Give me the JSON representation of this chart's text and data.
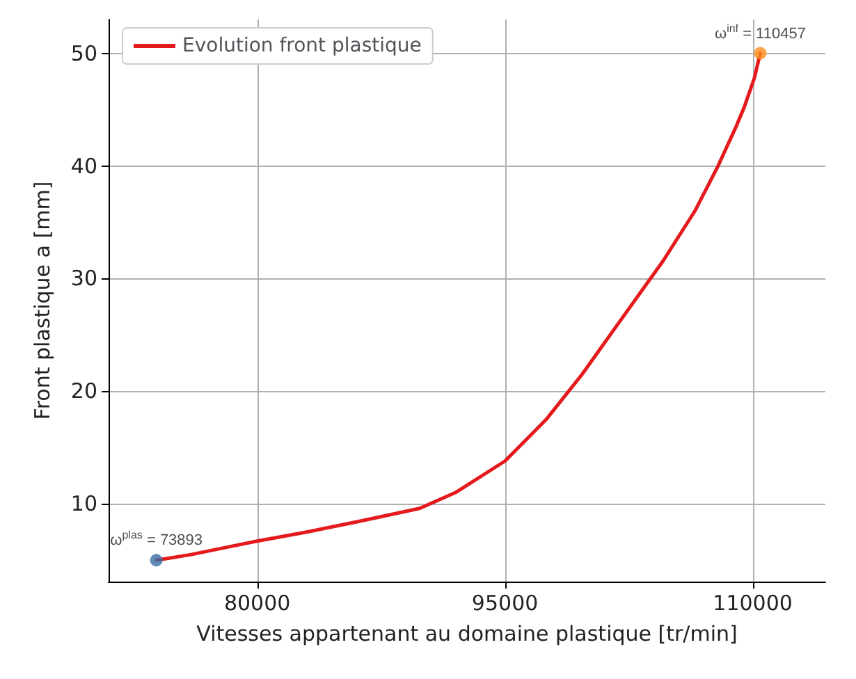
{
  "chart_data": {
    "type": "line",
    "xlabel": "Vitesses appartenant au domaine plastique [tr/min]",
    "ylabel": "Front plastique a [mm]",
    "xlim": [
      71000,
      114400
    ],
    "xticks": [
      80000,
      95000,
      110000
    ],
    "ylim": [
      3.1,
      53
    ],
    "yticks": [
      10,
      20,
      30,
      40,
      50
    ],
    "grid": true,
    "legend": "top left",
    "marker": "none",
    "line_style": "solid",
    "series": [
      {
        "name": "Evolution front plastique",
        "color": "#e41a1c",
        "x": [
          73893,
          76000,
          78000,
          80000,
          83000,
          86000,
          89836,
          92000,
          95000,
          97500,
          99672,
          102000,
          104590,
          106500,
          107869,
          109000,
          109508,
          110100,
          110457
        ],
        "values": [
          5,
          5.5,
          6.1,
          6.7,
          7.5,
          8.4,
          9.6,
          11,
          13.8,
          17.5,
          21.5,
          26.3,
          31.6,
          36,
          39.9,
          43.5,
          45.3,
          47.8,
          50
        ]
      },
      {
        "type": "scatter",
        "color": "#3a6ea5",
        "x": [
          73893
        ],
        "values": [
          5
        ],
        "marker": "circle"
      },
      {
        "type": "scatter",
        "color": "#ff8c1a",
        "x": [
          110457
        ],
        "values": [
          50
        ],
        "marker": "circle"
      }
    ],
    "annotations": [
      {
        "text": "ω$^{plas}$ = 73893",
        "x": 73893,
        "y": 5
      },
      {
        "text": "ω$^{inf}$ = 110457",
        "x": 110457,
        "y": 50
      }
    ]
  }
}
